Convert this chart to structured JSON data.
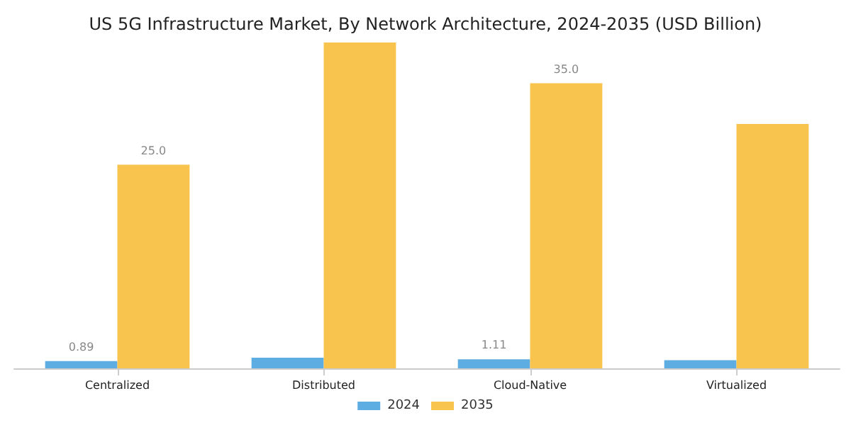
{
  "chart_data": {
    "type": "bar",
    "title": "US 5G Infrastructure Market, By Network Architecture, 2024-2035 (USD Billion)",
    "categories": [
      "Centralized",
      "Distributed",
      "Cloud-Native",
      "Virtualized"
    ],
    "series": [
      {
        "name": "2024",
        "color": "#5dade2",
        "values": [
          0.89,
          1.3,
          1.11,
          1.0
        ],
        "value_labels": [
          "0.89",
          null,
          "1.11",
          null
        ]
      },
      {
        "name": "2035",
        "color": "#f9c44e",
        "values": [
          25.0,
          40.0,
          35.0,
          30.0
        ],
        "value_labels": [
          "25.0",
          null,
          "35.0",
          null
        ]
      }
    ],
    "legend": "bottom"
  }
}
